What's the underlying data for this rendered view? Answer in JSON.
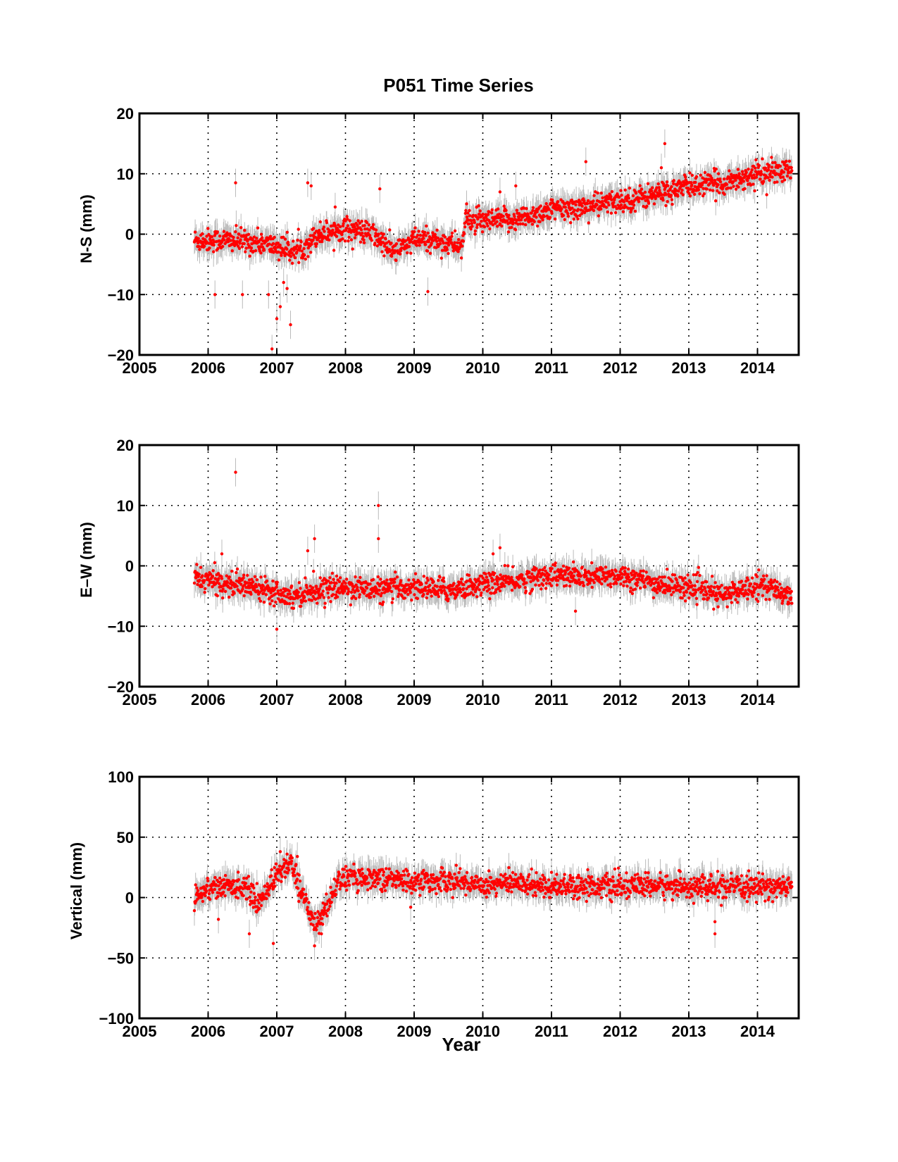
{
  "figure": {
    "title": "P051 Time Series"
  },
  "colors": {
    "points": "#ff0000",
    "error_bars": "#bbbbbb",
    "axes": "#000000",
    "grid": "#000000"
  },
  "chart_data": [
    {
      "type": "scatter",
      "title": "P051 Time Series",
      "xlabel": "",
      "ylabel": "N-S (mm)",
      "xlim": [
        2005,
        2014.6
      ],
      "ylim": [
        -20,
        20
      ],
      "xticks": [
        2005,
        2006,
        2007,
        2008,
        2009,
        2010,
        2011,
        2012,
        2013,
        2014
      ],
      "yticks": [
        -20,
        -10,
        0,
        10,
        20
      ],
      "ytick_labels": [
        "−20",
        "−10",
        "0",
        "10",
        "20"
      ],
      "grid": true,
      "error_bars": true,
      "data_range_x": [
        2005.8,
        2014.5
      ],
      "trend": [
        [
          2005.8,
          -1
        ],
        [
          2006.3,
          -1
        ],
        [
          2006.8,
          -1.5
        ],
        [
          2007.3,
          -3
        ],
        [
          2007.6,
          0
        ],
        [
          2008.0,
          1
        ],
        [
          2008.4,
          0
        ],
        [
          2008.7,
          -3
        ],
        [
          2009.0,
          -1
        ],
        [
          2009.3,
          -1
        ],
        [
          2009.7,
          -2
        ],
        [
          2009.75,
          2.5
        ],
        [
          2010.0,
          2
        ],
        [
          2010.5,
          2.5
        ],
        [
          2011.0,
          4
        ],
        [
          2011.5,
          4.5
        ],
        [
          2012.0,
          5.5
        ],
        [
          2012.5,
          6.5
        ],
        [
          2013.0,
          8
        ],
        [
          2013.5,
          8.5
        ],
        [
          2014.0,
          10
        ],
        [
          2014.5,
          10.5
        ]
      ],
      "outliers": [
        [
          2006.4,
          8.5
        ],
        [
          2006.1,
          -10
        ],
        [
          2006.5,
          -10
        ],
        [
          2006.93,
          -19
        ],
        [
          2006.88,
          -10
        ],
        [
          2007.0,
          -14
        ],
        [
          2007.05,
          -12
        ],
        [
          2007.1,
          -8
        ],
        [
          2007.15,
          -9
        ],
        [
          2007.2,
          -15
        ],
        [
          2007.45,
          8.5
        ],
        [
          2007.5,
          8
        ],
        [
          2007.85,
          4.5
        ],
        [
          2008.5,
          7.5
        ],
        [
          2009.2,
          -9.5
        ],
        [
          2010.25,
          7
        ],
        [
          2010.48,
          8
        ],
        [
          2011.5,
          12
        ],
        [
          2012.65,
          15
        ],
        [
          2012.6,
          11
        ]
      ]
    },
    {
      "type": "scatter",
      "xlabel": "",
      "ylabel": "E–W (mm)",
      "xlim": [
        2005,
        2014.6
      ],
      "ylim": [
        -20,
        20
      ],
      "xticks": [
        2005,
        2006,
        2007,
        2008,
        2009,
        2010,
        2011,
        2012,
        2013,
        2014
      ],
      "yticks": [
        -20,
        -10,
        0,
        10,
        20
      ],
      "ytick_labels": [
        "−20",
        "−10",
        "0",
        "10",
        "20"
      ],
      "grid": true,
      "error_bars": true,
      "data_range_x": [
        2005.8,
        2014.5
      ],
      "trend": [
        [
          2005.8,
          -2
        ],
        [
          2006.3,
          -3
        ],
        [
          2006.8,
          -3.5
        ],
        [
          2007.2,
          -5
        ],
        [
          2007.6,
          -4
        ],
        [
          2008.0,
          -3.5
        ],
        [
          2008.5,
          -4
        ],
        [
          2009.0,
          -3.5
        ],
        [
          2009.5,
          -4
        ],
        [
          2010.0,
          -3
        ],
        [
          2010.5,
          -2.5
        ],
        [
          2011.0,
          -1.5
        ],
        [
          2011.5,
          -2
        ],
        [
          2012.0,
          -1.5
        ],
        [
          2012.5,
          -3
        ],
        [
          2013.0,
          -3.5
        ],
        [
          2013.5,
          -5
        ],
        [
          2014.0,
          -3
        ],
        [
          2014.5,
          -5
        ]
      ],
      "outliers": [
        [
          2006.4,
          15.5
        ],
        [
          2006.2,
          2
        ],
        [
          2007.45,
          2.5
        ],
        [
          2007.55,
          4.5
        ],
        [
          2008.48,
          10
        ],
        [
          2008.48,
          4.5
        ],
        [
          2010.15,
          2
        ],
        [
          2010.25,
          3
        ],
        [
          2007.0,
          -10.5
        ],
        [
          2011.35,
          -7.5
        ]
      ]
    },
    {
      "type": "scatter",
      "xlabel": "Year",
      "ylabel": "Vertical (mm)",
      "xlim": [
        2005,
        2014.6
      ],
      "ylim": [
        -100,
        100
      ],
      "xticks": [
        2005,
        2006,
        2007,
        2008,
        2009,
        2010,
        2011,
        2012,
        2013,
        2014
      ],
      "yticks": [
        -100,
        -50,
        0,
        50,
        100
      ],
      "ytick_labels": [
        "−100",
        "−50",
        "0",
        "50",
        "100"
      ],
      "grid": true,
      "error_bars": true,
      "data_range_x": [
        2005.8,
        2014.5
      ],
      "trend": [
        [
          2005.8,
          0
        ],
        [
          2006.0,
          8
        ],
        [
          2006.3,
          9
        ],
        [
          2006.55,
          10
        ],
        [
          2006.7,
          -5
        ],
        [
          2006.85,
          5
        ],
        [
          2007.0,
          20
        ],
        [
          2007.2,
          28
        ],
        [
          2007.3,
          15
        ],
        [
          2007.45,
          -10
        ],
        [
          2007.6,
          -22
        ],
        [
          2007.75,
          -5
        ],
        [
          2007.9,
          15
        ],
        [
          2008.3,
          17
        ],
        [
          2008.7,
          15
        ],
        [
          2009.0,
          13
        ],
        [
          2009.5,
          14
        ],
        [
          2010.0,
          11
        ],
        [
          2010.5,
          12
        ],
        [
          2011.0,
          10
        ],
        [
          2011.5,
          10
        ],
        [
          2012.0,
          9
        ],
        [
          2012.5,
          10
        ],
        [
          2013.0,
          9
        ],
        [
          2013.5,
          8
        ],
        [
          2014.0,
          9
        ],
        [
          2014.5,
          9
        ]
      ],
      "outliers": [
        [
          2006.15,
          -18
        ],
        [
          2006.6,
          -30
        ],
        [
          2006.95,
          -38
        ],
        [
          2007.05,
          38
        ],
        [
          2007.15,
          36
        ],
        [
          2007.3,
          34
        ],
        [
          2007.55,
          -40
        ],
        [
          2007.65,
          -30
        ],
        [
          2013.38,
          -30
        ],
        [
          2013.38,
          -20
        ],
        [
          2008.95,
          -8
        ]
      ]
    }
  ]
}
